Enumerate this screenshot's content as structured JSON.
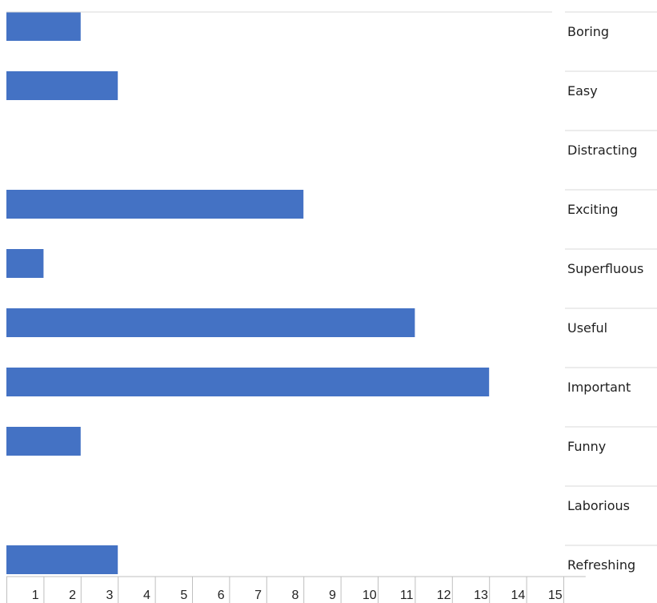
{
  "chart_data": {
    "type": "bar",
    "orientation": "horizontal",
    "categories": [
      "Boring",
      "Easy",
      "Distracting",
      "Exciting",
      "Superfluous",
      "Useful",
      "Important",
      "Funny",
      "Laborious",
      "Refreshing"
    ],
    "values": [
      2,
      3,
      0,
      8,
      1,
      11,
      13,
      2,
      0,
      3
    ],
    "xticks": [
      1,
      2,
      3,
      4,
      5,
      6,
      7,
      8,
      9,
      10,
      11,
      12,
      13,
      14,
      15
    ],
    "xlim": [
      0,
      15
    ],
    "legend": "none",
    "bar_color": "#4472C4",
    "grid": false
  }
}
